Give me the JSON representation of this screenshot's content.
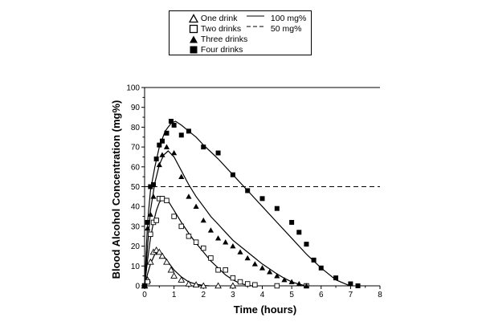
{
  "chart_data": {
    "type": "scatter",
    "xlabel": "Time (hours)",
    "ylabel": "Blood Alcohol Concentration (mg%)",
    "xlim": [
      0,
      8
    ],
    "ylim": [
      0,
      100
    ],
    "x_ticks": [
      "0",
      "1",
      "2",
      "3",
      "4",
      "5",
      "6",
      "7",
      "8"
    ],
    "y_ticks": [
      "0",
      "10",
      "20",
      "30",
      "40",
      "50",
      "60",
      "70",
      "80",
      "90",
      "100"
    ],
    "grid": false,
    "legend_position": "top-center, above plot",
    "series": [
      {
        "name": "One drink",
        "marker": "open-triangle",
        "points": [
          [
            0,
            0
          ],
          [
            0.1,
            3
          ],
          [
            0.2,
            12
          ],
          [
            0.3,
            17
          ],
          [
            0.4,
            18
          ],
          [
            0.5,
            17
          ],
          [
            0.6,
            15
          ],
          [
            0.75,
            12
          ],
          [
            0.9,
            8
          ],
          [
            1.0,
            5
          ],
          [
            1.25,
            3
          ],
          [
            1.5,
            1
          ],
          [
            1.75,
            0.5
          ],
          [
            2.0,
            0
          ],
          [
            2.5,
            0
          ],
          [
            3.0,
            0
          ]
        ],
        "curve": [
          [
            0,
            0
          ],
          [
            0.1,
            6
          ],
          [
            0.2,
            11
          ],
          [
            0.35,
            16
          ],
          [
            0.5,
            17
          ],
          [
            0.6,
            16
          ],
          [
            0.8,
            12
          ],
          [
            1.0,
            8
          ],
          [
            1.25,
            4.5
          ],
          [
            1.5,
            2
          ],
          [
            1.75,
            0.8
          ],
          [
            2.0,
            0.2
          ],
          [
            2.2,
            0
          ]
        ]
      },
      {
        "name": "Two drinks",
        "marker": "open-square",
        "points": [
          [
            0,
            0
          ],
          [
            0.1,
            2
          ],
          [
            0.2,
            26
          ],
          [
            0.3,
            32
          ],
          [
            0.4,
            33
          ],
          [
            0.5,
            44
          ],
          [
            0.6,
            44
          ],
          [
            0.75,
            43
          ],
          [
            1.0,
            35
          ],
          [
            1.25,
            30
          ],
          [
            1.5,
            25
          ],
          [
            1.75,
            22
          ],
          [
            2.0,
            19
          ],
          [
            2.25,
            14
          ],
          [
            2.5,
            8
          ],
          [
            2.75,
            8
          ],
          [
            3.0,
            4
          ],
          [
            3.25,
            2
          ],
          [
            3.5,
            1
          ],
          [
            3.75,
            0.5
          ],
          [
            4.5,
            0
          ],
          [
            5.5,
            0
          ]
        ],
        "curve": [
          [
            0,
            0
          ],
          [
            0.1,
            13
          ],
          [
            0.2,
            24
          ],
          [
            0.3,
            32
          ],
          [
            0.4,
            38
          ],
          [
            0.5,
            42
          ],
          [
            0.6,
            44
          ],
          [
            0.75,
            44
          ],
          [
            1.0,
            38
          ],
          [
            1.25,
            32
          ],
          [
            1.5,
            26.5
          ],
          [
            1.75,
            21.5
          ],
          [
            2.0,
            17
          ],
          [
            2.25,
            12.5
          ],
          [
            2.5,
            9
          ],
          [
            2.75,
            5.5
          ],
          [
            3.0,
            3
          ],
          [
            3.25,
            1.2
          ],
          [
            3.5,
            0.3
          ],
          [
            3.65,
            0
          ]
        ]
      },
      {
        "name": "Three drinks",
        "marker": "filled-triangle",
        "points": [
          [
            0,
            0
          ],
          [
            0.1,
            29
          ],
          [
            0.2,
            36
          ],
          [
            0.3,
            45
          ],
          [
            0.5,
            61
          ],
          [
            0.6,
            66
          ],
          [
            0.75,
            70
          ],
          [
            1.0,
            67
          ],
          [
            1.25,
            55
          ],
          [
            1.5,
            45
          ],
          [
            1.75,
            40
          ],
          [
            2.0,
            33
          ],
          [
            2.25,
            28
          ],
          [
            2.5,
            24
          ],
          [
            2.75,
            22
          ],
          [
            3.0,
            20
          ],
          [
            3.25,
            17
          ],
          [
            3.5,
            14
          ],
          [
            3.75,
            11
          ],
          [
            4.0,
            9
          ],
          [
            4.25,
            7
          ],
          [
            4.5,
            5
          ],
          [
            4.75,
            3
          ],
          [
            5.0,
            2
          ],
          [
            5.25,
            1
          ],
          [
            5.5,
            0
          ]
        ],
        "curve": [
          [
            0,
            0
          ],
          [
            0.1,
            20
          ],
          [
            0.2,
            38
          ],
          [
            0.35,
            52
          ],
          [
            0.5,
            61
          ],
          [
            0.65,
            66
          ],
          [
            0.8,
            68
          ],
          [
            1.0,
            65
          ],
          [
            1.25,
            58
          ],
          [
            1.5,
            51
          ],
          [
            1.75,
            45
          ],
          [
            2.0,
            40
          ],
          [
            2.25,
            35
          ],
          [
            2.5,
            31
          ],
          [
            2.75,
            27
          ],
          [
            3.0,
            23
          ],
          [
            3.25,
            20
          ],
          [
            3.5,
            17
          ],
          [
            3.75,
            14
          ],
          [
            4.0,
            11
          ],
          [
            4.25,
            8.5
          ],
          [
            4.5,
            6
          ],
          [
            4.75,
            3.8
          ],
          [
            5.0,
            2
          ],
          [
            5.25,
            0.8
          ],
          [
            5.5,
            0
          ]
        ]
      },
      {
        "name": "Four drinks",
        "marker": "filled-square",
        "points": [
          [
            0,
            0
          ],
          [
            0.1,
            32
          ],
          [
            0.2,
            50
          ],
          [
            0.3,
            51
          ],
          [
            0.4,
            64
          ],
          [
            0.5,
            71
          ],
          [
            0.6,
            73
          ],
          [
            0.75,
            77
          ],
          [
            0.9,
            83
          ],
          [
            1.0,
            81
          ],
          [
            1.25,
            76
          ],
          [
            1.5,
            78
          ],
          [
            2.0,
            70
          ],
          [
            2.5,
            67
          ],
          [
            3.0,
            56
          ],
          [
            3.5,
            48
          ],
          [
            4.0,
            44
          ],
          [
            4.5,
            39
          ],
          [
            5.0,
            32
          ],
          [
            5.25,
            27
          ],
          [
            5.5,
            21
          ],
          [
            5.75,
            13
          ],
          [
            6.0,
            9
          ],
          [
            6.5,
            4
          ],
          [
            7.0,
            1
          ],
          [
            7.25,
            0
          ]
        ],
        "curve": [
          [
            0,
            0
          ],
          [
            0.1,
            32
          ],
          [
            0.2,
            48
          ],
          [
            0.35,
            60
          ],
          [
            0.5,
            70
          ],
          [
            0.7,
            78
          ],
          [
            0.9,
            82
          ],
          [
            1.05,
            83
          ],
          [
            1.25,
            81
          ],
          [
            1.5,
            78
          ],
          [
            1.75,
            75
          ],
          [
            2.0,
            71
          ],
          [
            2.5,
            64
          ],
          [
            3.0,
            56
          ],
          [
            3.5,
            48
          ],
          [
            4.0,
            40
          ],
          [
            4.5,
            32
          ],
          [
            5.0,
            24
          ],
          [
            5.5,
            16
          ],
          [
            6.0,
            9
          ],
          [
            6.5,
            3
          ],
          [
            6.9,
            0.5
          ],
          [
            7.0,
            0
          ]
        ]
      }
    ],
    "reference_lines": [
      {
        "name": "100 mg%",
        "y": 100,
        "style": "solid"
      },
      {
        "name": "50 mg%",
        "y": 50,
        "style": "dashed"
      }
    ]
  },
  "legend": {
    "items": [
      "One drink",
      "Two drinks",
      "Three drinks",
      "Four drinks"
    ],
    "refs": [
      "100 mg%",
      "50 mg%"
    ]
  }
}
